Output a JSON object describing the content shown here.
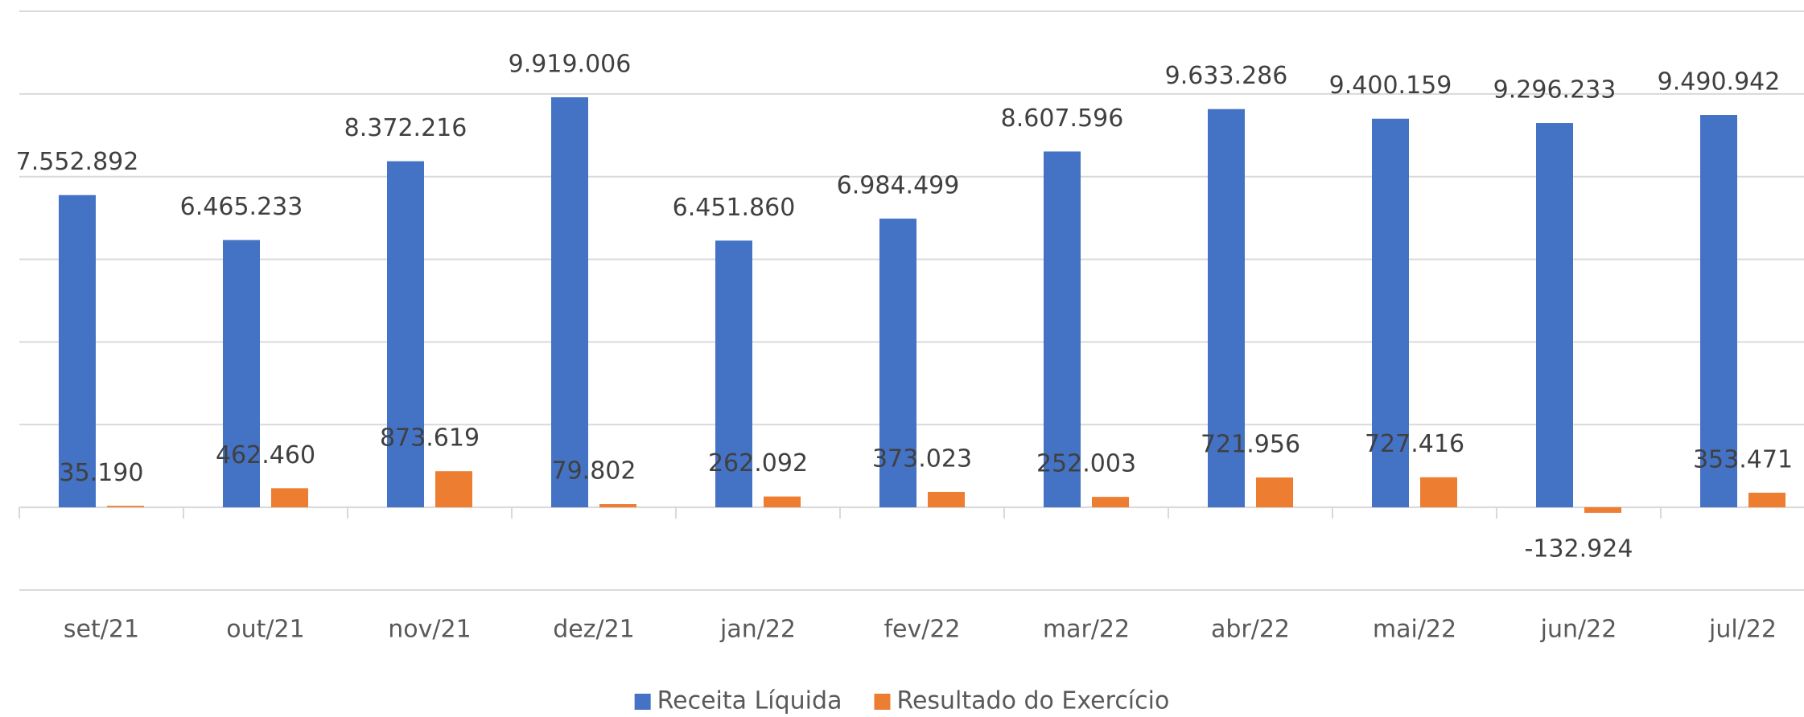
{
  "chart_data": {
    "type": "bar",
    "categories": [
      "set/21",
      "out/21",
      "nov/21",
      "dez/21",
      "jan/22",
      "fev/22",
      "mar/22",
      "abr/22",
      "mai/22",
      "jun/22",
      "jul/22"
    ],
    "series": [
      {
        "name": "Receita Líquida",
        "color": "#4472c4",
        "values": [
          7552892,
          6465233,
          8372216,
          9919006,
          6451860,
          6984499,
          8607596,
          9633286,
          9400159,
          9296233,
          9490942
        ],
        "value_labels": [
          "7.552.892",
          "6.465.233",
          "8.372.216",
          "9.919.006",
          "6.451.860",
          "6.984.499",
          "8.607.596",
          "9.633.286",
          "9.400.159",
          "9.296.233",
          "9.490.942"
        ]
      },
      {
        "name": "Resultado do Exercício",
        "color": "#ed7d31",
        "values": [
          35190,
          462460,
          873619,
          79802,
          262092,
          373023,
          252003,
          721956,
          727416,
          -132924,
          353471
        ],
        "value_labels": [
          "35.190",
          "462.460",
          "873.619",
          "79.802",
          "262.092",
          "373.023",
          "252.003",
          "721.956",
          "727.416",
          "-132.924",
          "353.471"
        ]
      }
    ],
    "ylim": [
      -2000000,
      12000000
    ],
    "yticks": [
      -2000000,
      0,
      2000000,
      4000000,
      6000000,
      8000000,
      10000000,
      12000000
    ],
    "grid": true,
    "legend": "bottom"
  }
}
